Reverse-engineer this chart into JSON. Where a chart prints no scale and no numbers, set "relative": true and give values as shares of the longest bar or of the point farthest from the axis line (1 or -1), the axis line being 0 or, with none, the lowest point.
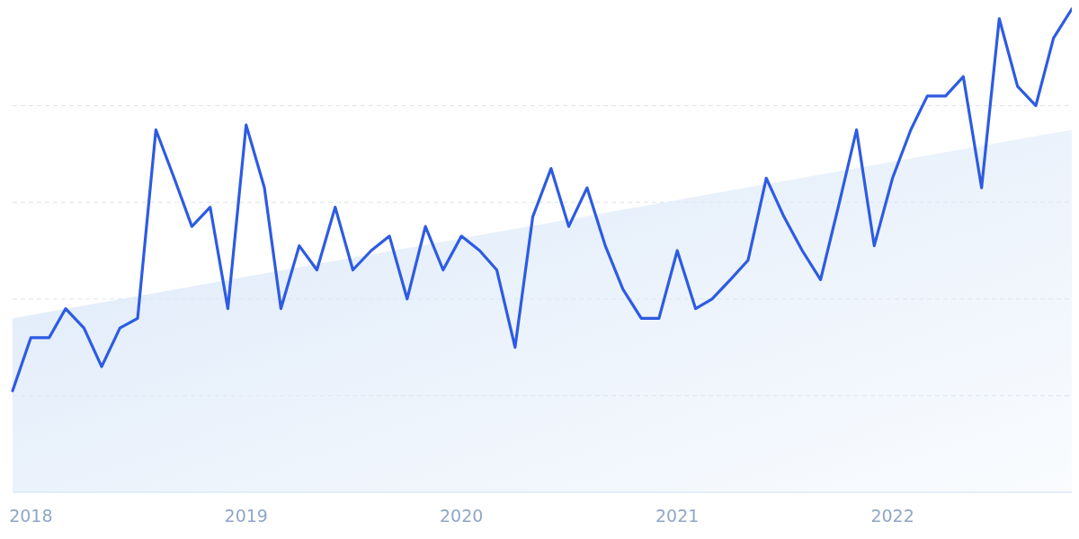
{
  "chart_data": {
    "type": "line",
    "relative": true,
    "grid": "y",
    "tick_labels": "x",
    "marker": "none",
    "line_style": "solid",
    "xlim": [
      "2017-12",
      "2022-11"
    ],
    "xticks": [
      {
        "value": "2018-01",
        "label": "2018"
      },
      {
        "value": "2019-01",
        "label": "2019"
      },
      {
        "value": "2020-01",
        "label": "2020"
      },
      {
        "value": "2021-01",
        "label": "2021"
      },
      {
        "value": "2022-01",
        "label": "2022"
      }
    ],
    "x": [
      "2017-12",
      "2018-01",
      "2018-02",
      "2018-03",
      "2018-04",
      "2018-05",
      "2018-06",
      "2018-07",
      "2018-08",
      "2018-09",
      "2018-10",
      "2018-11",
      "2018-12",
      "2019-01",
      "2019-02",
      "2019-03",
      "2019-04",
      "2019-05",
      "2019-06",
      "2019-07",
      "2019-08",
      "2019-09",
      "2019-10",
      "2019-11",
      "2019-12",
      "2020-01",
      "2020-02",
      "2020-03",
      "2020-04",
      "2020-05",
      "2020-06",
      "2020-07",
      "2020-08",
      "2020-09",
      "2020-10",
      "2020-11",
      "2020-12",
      "2021-01",
      "2021-02",
      "2021-03",
      "2021-04",
      "2021-05",
      "2021-06",
      "2021-07",
      "2021-08",
      "2021-09",
      "2021-10",
      "2021-11",
      "2021-12",
      "2022-01",
      "2022-02",
      "2022-03",
      "2022-04",
      "2022-05",
      "2022-06",
      "2022-07",
      "2022-08",
      "2022-09",
      "2022-10",
      "2022-11"
    ],
    "series": [
      {
        "type": "area",
        "color": "#dce9f9",
        "x": [
          "2017-12",
          "2022-11"
        ],
        "values": [
          0.36,
          0.75
        ]
      },
      {
        "color": "#2d5be3",
        "values": [
          0.21,
          0.32,
          0.32,
          0.38,
          0.34,
          0.26,
          0.34,
          0.36,
          0.75,
          0.65,
          0.55,
          0.59,
          0.38,
          0.76,
          0.63,
          0.38,
          0.51,
          0.46,
          0.59,
          0.46,
          0.5,
          0.53,
          0.4,
          0.55,
          0.46,
          0.53,
          0.5,
          0.46,
          0.3,
          0.57,
          0.67,
          0.55,
          0.63,
          0.51,
          0.42,
          0.36,
          0.36,
          0.5,
          0.38,
          0.4,
          0.44,
          0.48,
          0.65,
          0.57,
          0.5,
          0.44,
          0.59,
          0.75,
          0.51,
          0.65,
          0.75,
          0.82,
          0.82,
          0.86,
          0.63,
          0.98,
          0.84,
          0.8,
          0.94,
          1
        ]
      }
    ]
  }
}
